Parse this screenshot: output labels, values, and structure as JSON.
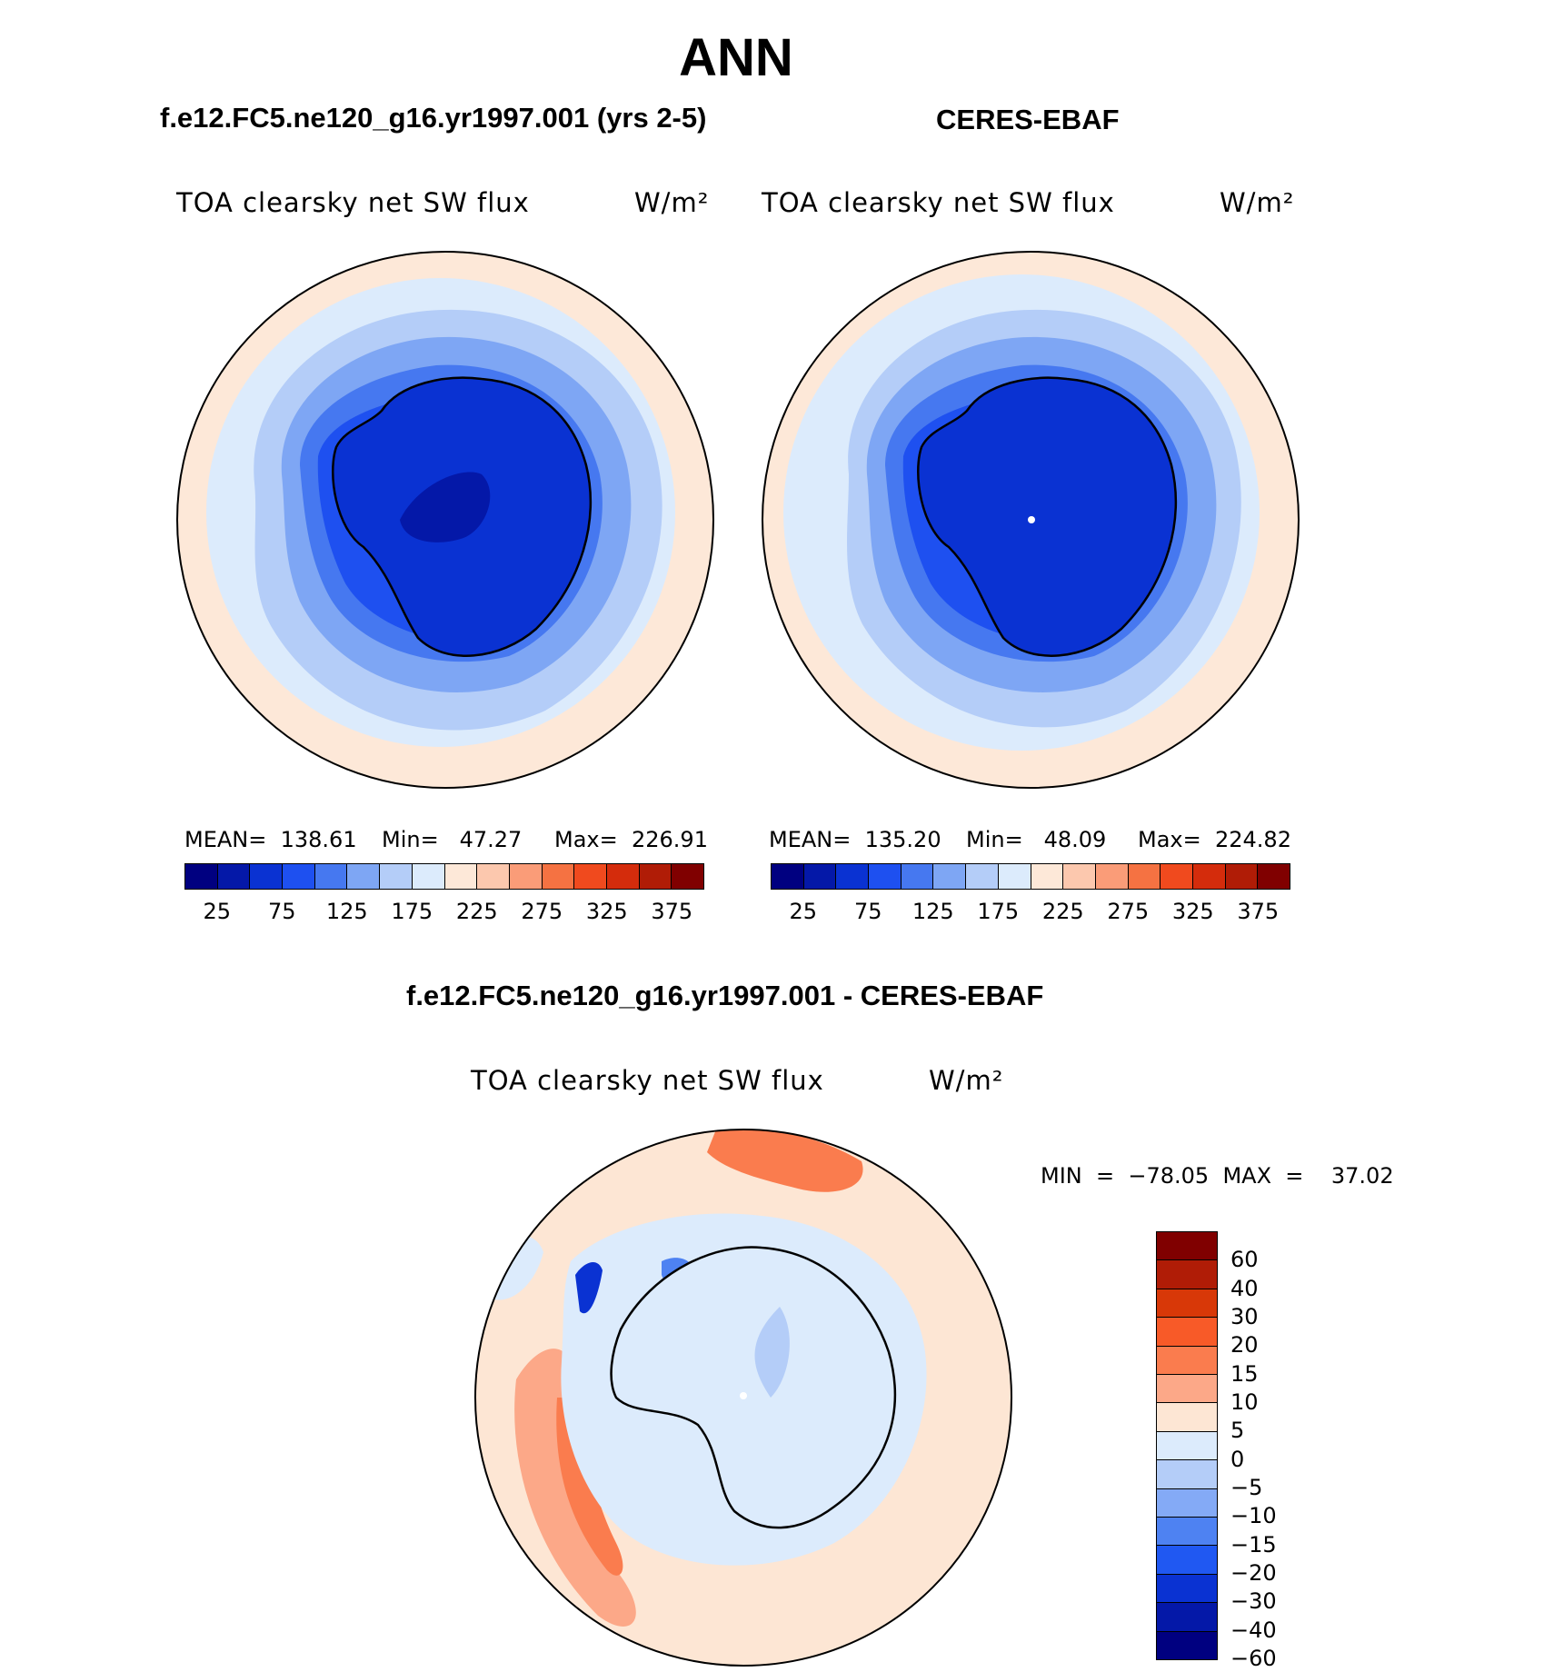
{
  "figure": {
    "title": "ANN",
    "panel1": {
      "title": "f.e12.FC5.ne120_g16.yr1997.001 (yrs 2-5)",
      "var_label": "TOA clearsky net SW flux",
      "units": "W/m²",
      "stats": {
        "mean": "MEAN=  138.61",
        "min": "Min=   47.27",
        "max": "Max=  226.91"
      }
    },
    "panel2": {
      "title": "CERES-EBAF",
      "var_label": "TOA clearsky net SW flux",
      "units": "W/m²",
      "stats": {
        "mean": "MEAN=  135.20",
        "min": "Min=   48.09",
        "max": "Max=  224.82"
      }
    },
    "panel3": {
      "title": "f.e12.FC5.ne120_g16.yr1997.001 - CERES-EBAF",
      "var_label": "TOA clearsky net SW flux",
      "units": "W/m²",
      "minmax": "MIN  =  −78.05  MAX  =    37.02"
    }
  },
  "colorbar_abs": {
    "colors": [
      "#000080",
      "#0418a8",
      "#0a32d2",
      "#1e50f0",
      "#4678f0",
      "#7ea6f4",
      "#b4cdf8",
      "#dcebfc",
      "#fde8d8",
      "#fcc8ae",
      "#fa9c78",
      "#f57242",
      "#f04a1e",
      "#d42c0c",
      "#b01c06",
      "#800000"
    ],
    "ticks": [
      "25",
      "75",
      "125",
      "175",
      "225",
      "275",
      "325",
      "375"
    ]
  },
  "colorbar_diff": {
    "colors": [
      "#800000",
      "#b01c06",
      "#d83808",
      "#f85a28",
      "#fa7c4e",
      "#fca888",
      "#fde6d4",
      "#dcebfc",
      "#b4cdf8",
      "#84aaf6",
      "#4e82f2",
      "#2058f2",
      "#0a32d2",
      "#0418a8",
      "#000080"
    ],
    "ticks": [
      "60",
      "40",
      "30",
      "20",
      "15",
      "10",
      "5",
      "0",
      "−5",
      "−10",
      "−15",
      "−20",
      "−30",
      "−40",
      "−60"
    ]
  }
}
